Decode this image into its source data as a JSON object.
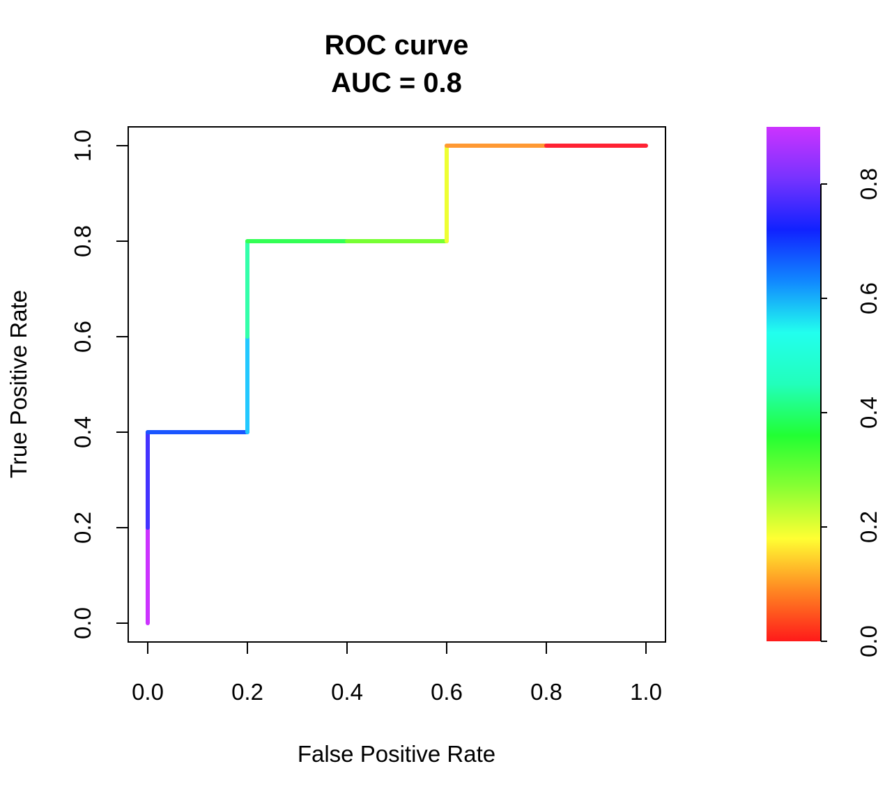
{
  "chart_data": {
    "type": "line",
    "title": "ROC curve",
    "subtitle": "AUC = 0.8",
    "xlabel": "False Positive Rate",
    "ylabel": "True Positive Rate",
    "xlim": [
      0,
      1
    ],
    "ylim": [
      0,
      1
    ],
    "x_ticks": [
      "0.0",
      "0.2",
      "0.4",
      "0.6",
      "0.8",
      "1.0"
    ],
    "y_ticks": [
      "0.0",
      "0.2",
      "0.4",
      "0.6",
      "0.8",
      "1.0"
    ],
    "grid": false,
    "legend": "none",
    "series": [
      {
        "segments": [
          {
            "from": [
              0.0,
              0.0
            ],
            "to": [
              0.0,
              0.2
            ],
            "color": "#cc33ff"
          },
          {
            "from": [
              0.0,
              0.2
            ],
            "to": [
              0.0,
              0.4
            ],
            "color": "#4433ff"
          },
          {
            "from": [
              0.0,
              0.4
            ],
            "to": [
              0.2,
              0.4
            ],
            "color": "#1a55ff"
          },
          {
            "from": [
              0.2,
              0.4
            ],
            "to": [
              0.2,
              0.6
            ],
            "color": "#22c8ff"
          },
          {
            "from": [
              0.2,
              0.6
            ],
            "to": [
              0.2,
              0.8
            ],
            "color": "#33ffaa"
          },
          {
            "from": [
              0.2,
              0.8
            ],
            "to": [
              0.4,
              0.8
            ],
            "color": "#33ff55"
          },
          {
            "from": [
              0.4,
              0.8
            ],
            "to": [
              0.6,
              0.8
            ],
            "color": "#77ff33"
          },
          {
            "from": [
              0.6,
              0.8
            ],
            "to": [
              0.6,
              1.0
            ],
            "color": "#eeff33"
          },
          {
            "from": [
              0.6,
              1.0
            ],
            "to": [
              0.8,
              1.0
            ],
            "color": "#ff9933"
          },
          {
            "from": [
              0.8,
              1.0
            ],
            "to": [
              1.0,
              1.0
            ],
            "color": "#ff2233"
          }
        ]
      }
    ],
    "colorbar": {
      "range": [
        0,
        0.9
      ],
      "ticks": [
        "0.0",
        "0.2",
        "0.4",
        "0.6",
        "0.8"
      ],
      "tick_values": [
        0.0,
        0.2,
        0.4,
        0.6,
        0.8
      ],
      "colors": [
        "#ff1a1a",
        "#ff8822",
        "#ffff33",
        "#88ff33",
        "#22ff33",
        "#22ffbb",
        "#22ffee",
        "#1188ff",
        "#1122ff",
        "#7733ff",
        "#cc33ff"
      ]
    }
  }
}
